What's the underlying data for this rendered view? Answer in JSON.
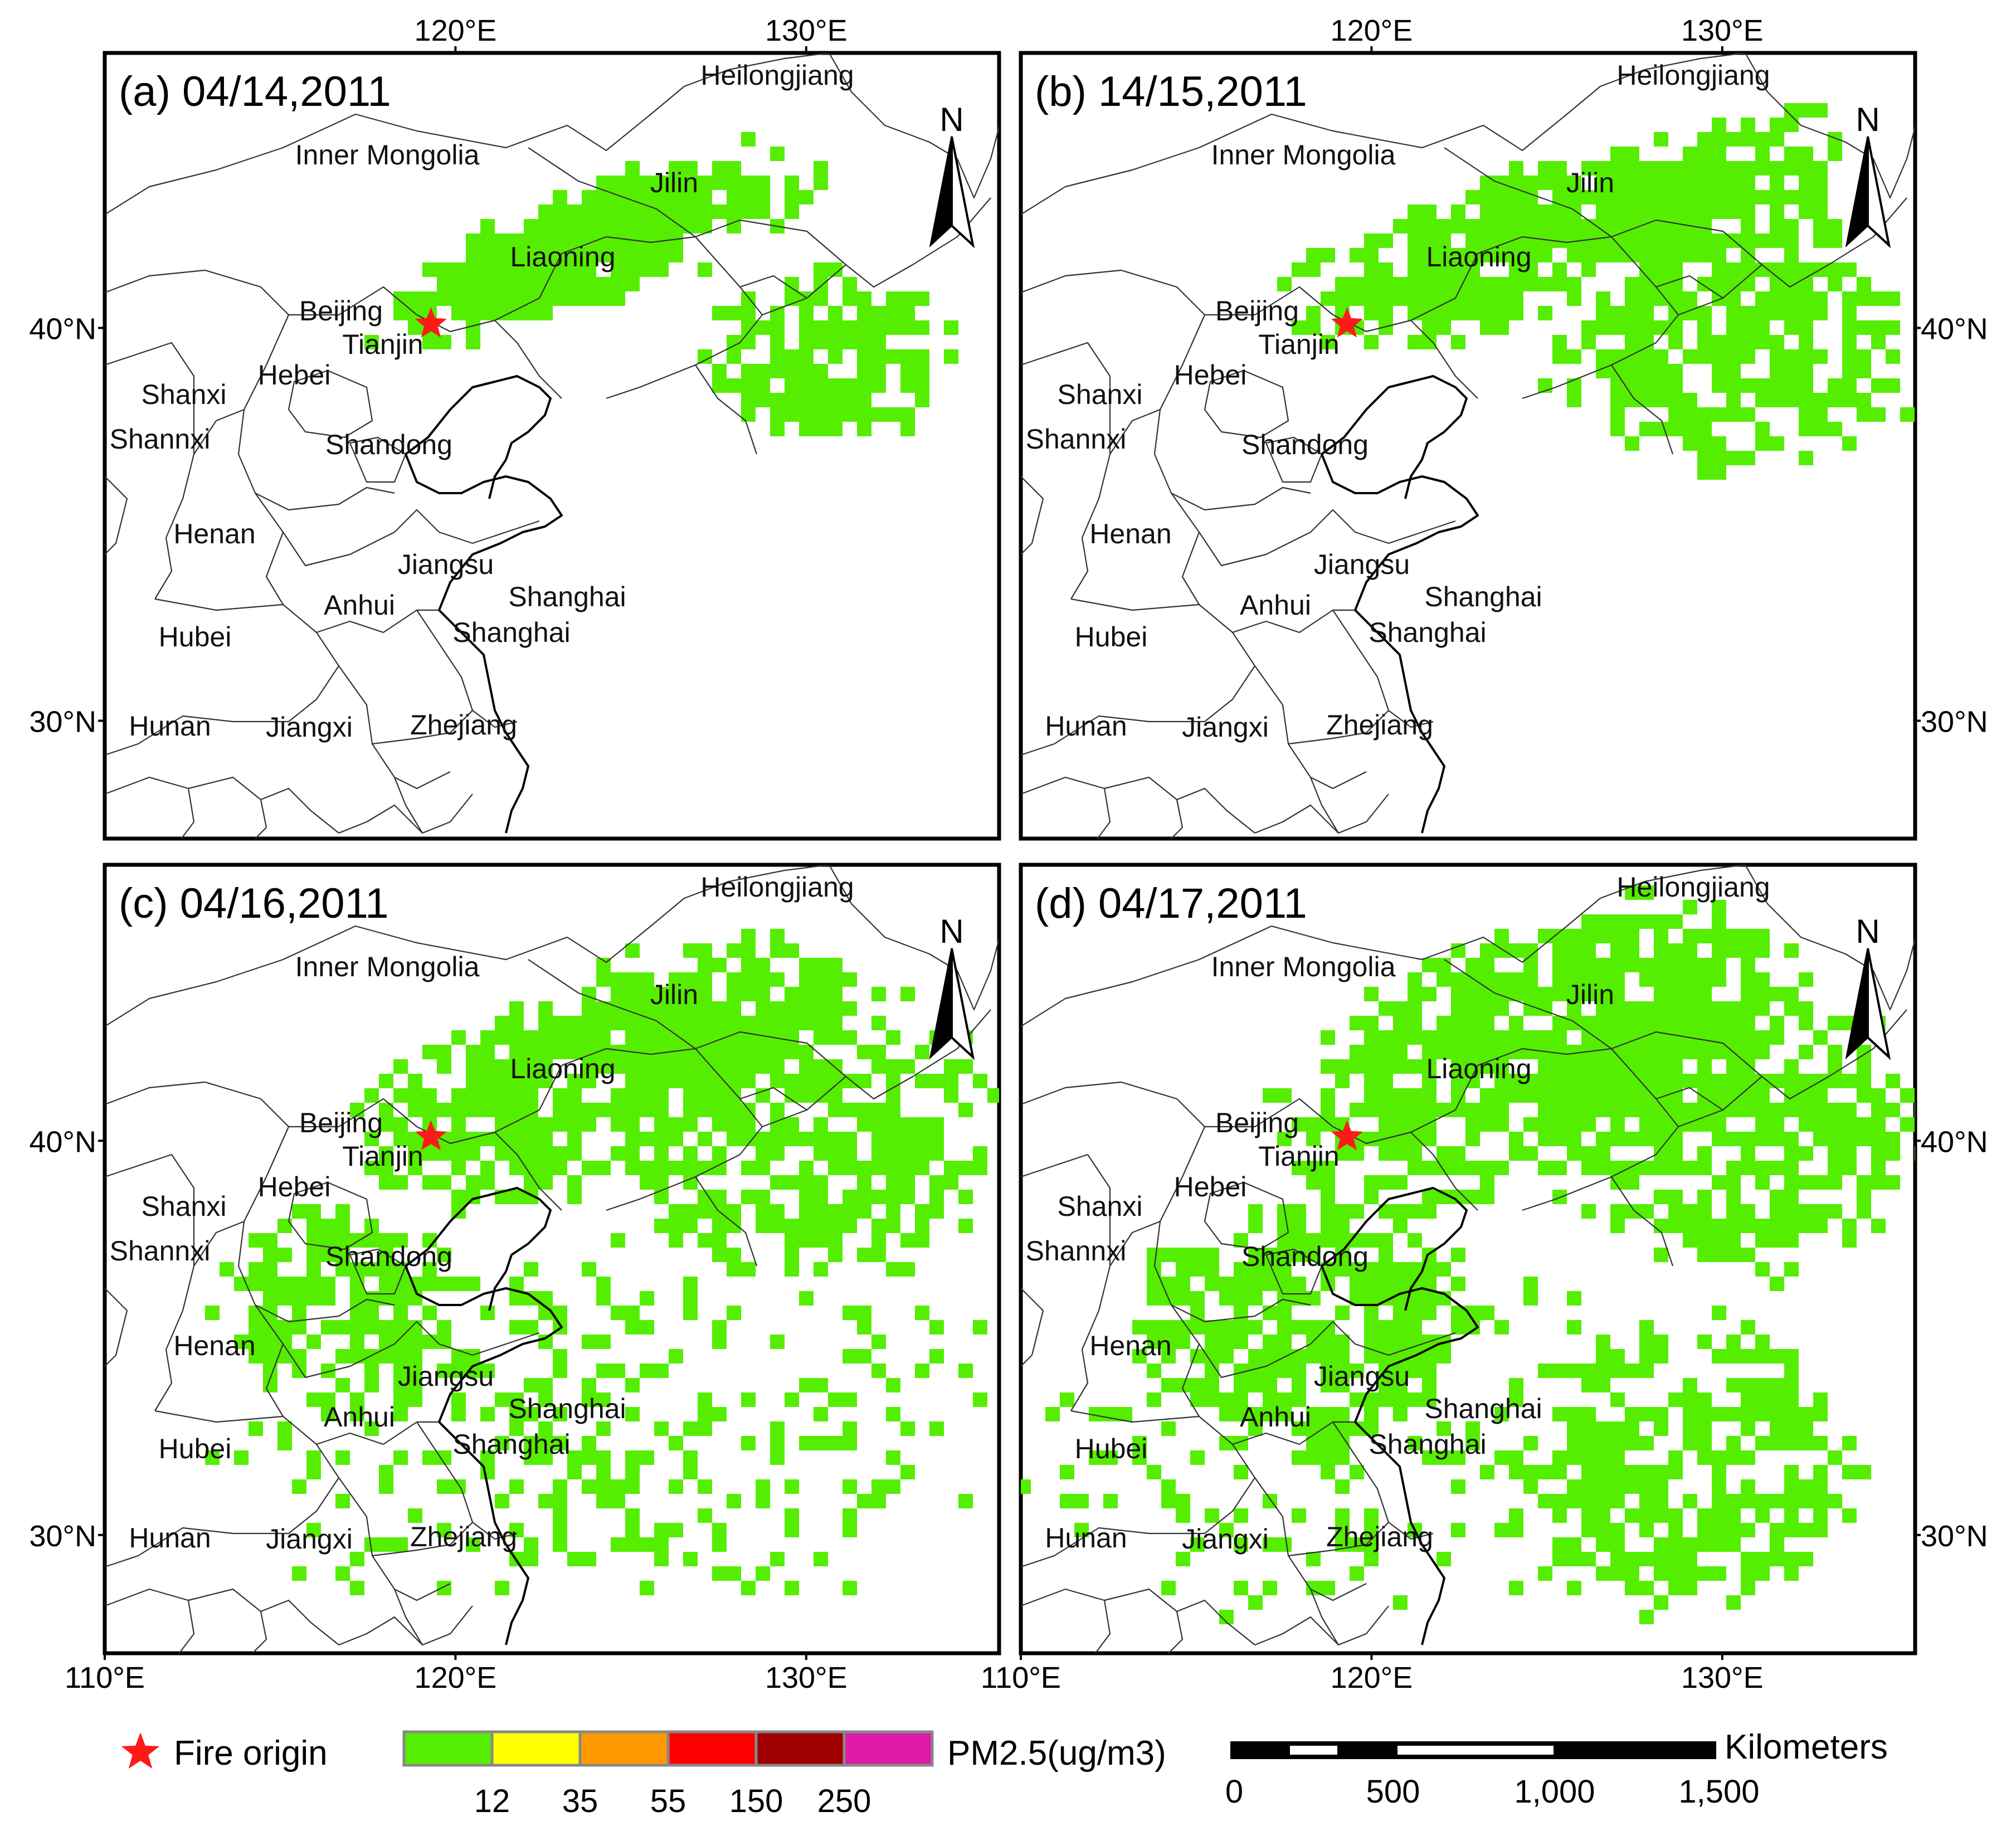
{
  "panels": [
    {
      "id": "a",
      "title": "(a) 04/14,2011"
    },
    {
      "id": "b",
      "title": "(b) 14/15,2011"
    },
    {
      "id": "c",
      "title": "(c) 04/16,2011"
    },
    {
      "id": "d",
      "title": "(d) 04/17,2011"
    }
  ],
  "provinces": [
    "Heilongjiang",
    "Inner Mongolia",
    "Jilin",
    "Liaoning",
    "Beijing",
    "Tianjin",
    "Hebei",
    "Shanxi",
    "Shannxi",
    "Shandong",
    "Henan",
    "Jiangsu",
    "Anhui",
    "Shanghai",
    "Shanghai",
    "Hubei",
    "Zhejiang",
    "Hunan",
    "Jiangxi"
  ],
  "axes": {
    "lon_ticks": [
      "110°E",
      "120°E",
      "130°E"
    ],
    "lat_ticks": [
      "40°N",
      "30°N"
    ],
    "lon_range": [
      110,
      135.5
    ],
    "lat_range": [
      27,
      47
    ]
  },
  "north_arrow": {
    "letter": "N"
  },
  "fire_origin": {
    "label": "Fire origin",
    "lon": 119.3,
    "lat": 40.1,
    "color": "#ff1a1a"
  },
  "legend": {
    "title": "PM2.5(ug/m3)",
    "classes": [
      {
        "color": "#55ee00"
      },
      {
        "color": "#ffff00"
      },
      {
        "color": "#ff9900"
      },
      {
        "color": "#ff0000"
      },
      {
        "color": "#a00000"
      },
      {
        "color": "#e01aa8"
      }
    ],
    "breaks": [
      "12",
      "35",
      "55",
      "150",
      "250"
    ]
  },
  "scale_bar": {
    "unit": "Kilometers",
    "labels": [
      "0",
      "500",
      "1,000",
      "1,500"
    ]
  },
  "pm_color": "#55ee00"
}
